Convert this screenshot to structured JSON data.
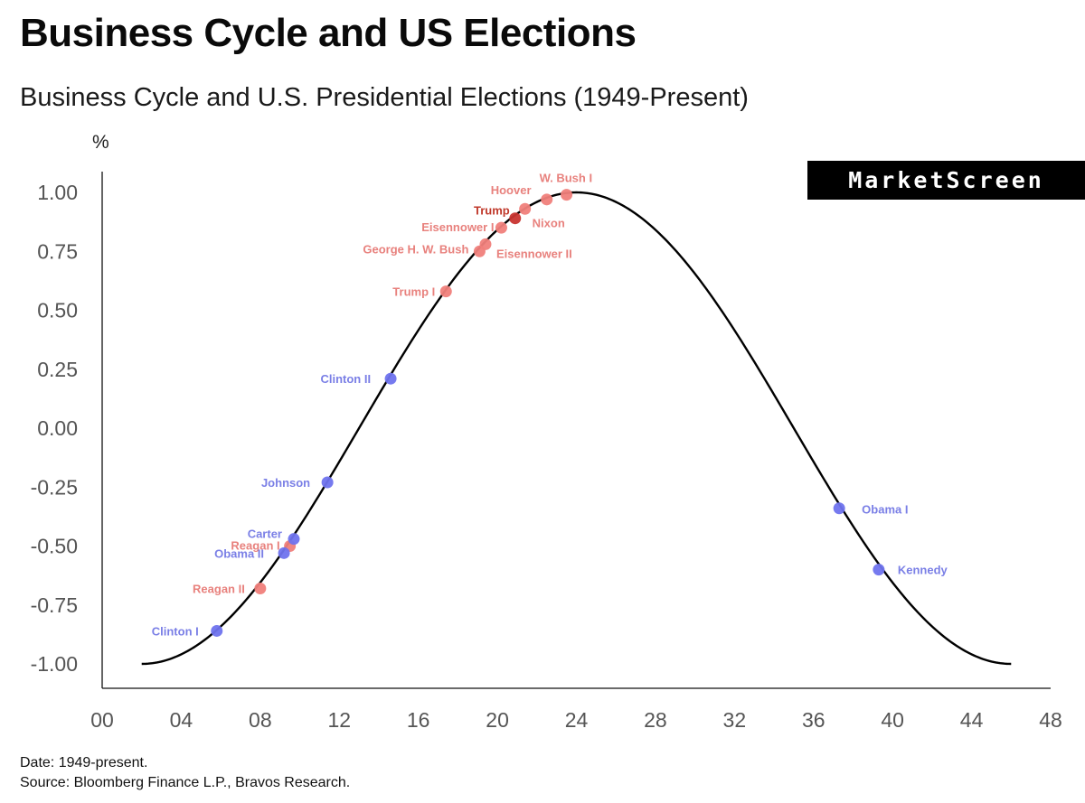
{
  "header": {
    "title": "Business Cycle and US Elections",
    "subtitle": "Business Cycle and U.S. Presidential Elections (1949-Present)",
    "unit": "%"
  },
  "brand": {
    "label": "MarketScreen"
  },
  "footer": {
    "date_note": "Date: 1949-present.",
    "source_note": "Source: Bloomberg Finance L.P., Bravos Research."
  },
  "colors": {
    "curve": "#000000",
    "red_point": "#f07f7b",
    "red_label": "#e8817d",
    "blue_point": "#6f73ee",
    "blue_label": "#7a7fe6",
    "highlight_point": "#c8342f",
    "highlight_label": "#c0392b"
  },
  "chart_data": {
    "type": "scatter",
    "title": "Business Cycle and U.S. Presidential Elections (1949-Present)",
    "ylabel": "%",
    "xlim": [
      0,
      48
    ],
    "ylim": [
      -1.05,
      1.1
    ],
    "x_ticks": [
      0,
      4,
      8,
      12,
      16,
      20,
      24,
      28,
      32,
      36,
      40,
      44,
      48
    ],
    "x_tick_labels": [
      "00",
      "04",
      "08",
      "12",
      "16",
      "20",
      "24",
      "28",
      "32",
      "36",
      "40",
      "44",
      "48"
    ],
    "y_ticks": [
      1.0,
      0.75,
      0.5,
      0.25,
      0.0,
      -0.25,
      -0.5,
      -0.75,
      -1.0
    ],
    "y_tick_labels": [
      "1.00",
      "0.75",
      "0.50",
      "0.25",
      "0.00",
      "-0.25",
      "-0.50",
      "-0.75",
      "-1.00"
    ],
    "grid": false,
    "curve": {
      "type": "cosine",
      "x_start": 2,
      "x_end": 46,
      "peak_x": 24,
      "period": 44
    },
    "series": [
      {
        "color_key": "red",
        "points": [
          {
            "label": "W. Bush I",
            "x": 23.5,
            "y": 0.99
          },
          {
            "label": "Hoover",
            "x": 22.5,
            "y": 0.97
          },
          {
            "label": "Nixon",
            "x": 21.4,
            "y": 0.93
          },
          {
            "label": "Eisennower I",
            "x": 20.2,
            "y": 0.85
          },
          {
            "label": "George H. W. Bush",
            "x": 19.1,
            "y": 0.75
          },
          {
            "label": "Eisennower II",
            "x": 19.4,
            "y": 0.78
          },
          {
            "label": "Trump I",
            "x": 17.4,
            "y": 0.58
          },
          {
            "label": "Reagan I",
            "x": 9.5,
            "y": -0.5
          },
          {
            "label": "Reagan II",
            "x": 8.0,
            "y": -0.68
          }
        ]
      },
      {
        "color_key": "highlight",
        "points": [
          {
            "label": "Trump",
            "x": 20.9,
            "y": 0.89
          }
        ]
      },
      {
        "color_key": "blue",
        "points": [
          {
            "label": "Clinton II",
            "x": 14.6,
            "y": 0.21
          },
          {
            "label": "Johnson",
            "x": 11.4,
            "y": -0.23
          },
          {
            "label": "Carter",
            "x": 9.7,
            "y": -0.47
          },
          {
            "label": "Obama II",
            "x": 9.2,
            "y": -0.53
          },
          {
            "label": "Clinton I",
            "x": 5.8,
            "y": -0.86
          },
          {
            "label": "Obama I",
            "x": 37.3,
            "y": -0.34
          },
          {
            "label": "Kennedy",
            "x": 39.3,
            "y": -0.6
          }
        ]
      }
    ]
  }
}
